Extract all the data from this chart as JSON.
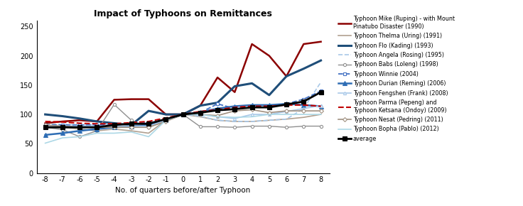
{
  "title": "Impact of Typhoons on Remittances",
  "xlabel": "No. of quarters before/after Typhoon",
  "x": [
    -8,
    -7,
    -6,
    -5,
    -4,
    -3,
    -2,
    -1,
    0,
    1,
    2,
    3,
    4,
    5,
    6,
    7,
    8
  ],
  "ylim": [
    0,
    260
  ],
  "yticks": [
    0,
    50,
    100,
    150,
    200,
    250
  ],
  "series": {
    "mike": {
      "label": "Typhoon Mike (Ruping) - with Mount\nPinatubo Disaster (1990)",
      "color": "#8B0000",
      "lw": 1.8,
      "ls": "-",
      "marker": null,
      "markersize": 0,
      "data": [
        85,
        88,
        90,
        88,
        125,
        126,
        126,
        100,
        100,
        115,
        163,
        138,
        220,
        200,
        165,
        220,
        224
      ]
    },
    "thelma": {
      "label": "Typhoon Thelma (Uring) (1991)",
      "color": "#b0a090",
      "lw": 1.2,
      "ls": "-",
      "marker": null,
      "markersize": 0,
      "data": [
        80,
        78,
        75,
        72,
        75,
        72,
        68,
        90,
        100,
        96,
        90,
        88,
        88,
        90,
        92,
        95,
        100
      ]
    },
    "flo": {
      "label": "Typhoon Flo (Kading) (1993)",
      "color": "#1f4e79",
      "lw": 2.2,
      "ls": "-",
      "marker": null,
      "markersize": 0,
      "data": [
        100,
        97,
        93,
        88,
        85,
        82,
        106,
        100,
        100,
        115,
        120,
        148,
        153,
        133,
        165,
        178,
        192
      ]
    },
    "angela": {
      "label": "Typhoon Angela (Rosing) (1995)",
      "color": "#a8c8e8",
      "lw": 1.2,
      "ls": "--",
      "marker": null,
      "markersize": 0,
      "data": [
        83,
        83,
        82,
        82,
        84,
        84,
        86,
        92,
        100,
        97,
        90,
        88,
        88,
        90,
        92,
        110,
        155
      ]
    },
    "babs": {
      "label": "Typhoon Babs (Loleng) (1998)",
      "color": "#909090",
      "lw": 1.0,
      "ls": "-",
      "marker": "o",
      "markersize": 3,
      "data": [
        78,
        74,
        62,
        72,
        117,
        90,
        78,
        91,
        100,
        79,
        79,
        78,
        80,
        80,
        78,
        80,
        80
      ]
    },
    "winnie": {
      "label": "Typhoon Winnie (2004)",
      "color": "#4472c4",
      "lw": 1.3,
      "ls": "--",
      "marker": "s",
      "markersize": 3,
      "data": [
        82,
        82,
        82,
        82,
        82,
        84,
        86,
        90,
        100,
        103,
        118,
        110,
        112,
        112,
        118,
        126,
        140
      ]
    },
    "durian": {
      "label": "Typhoon Durian (Reming) (2006)",
      "color": "#2e6db4",
      "lw": 1.8,
      "ls": "-",
      "marker": "^",
      "markersize": 4,
      "data": [
        65,
        68,
        72,
        75,
        78,
        80,
        82,
        90,
        100,
        104,
        110,
        114,
        116,
        116,
        118,
        116,
        114
      ]
    },
    "fengshen": {
      "label": "Typhoon Fengshen (Frank) (2008)",
      "color": "#a8c8e8",
      "lw": 1.2,
      "ls": "-",
      "marker": "^",
      "markersize": 3,
      "data": [
        80,
        80,
        80,
        80,
        80,
        80,
        80,
        90,
        100,
        100,
        96,
        93,
        100,
        100,
        105,
        110,
        115
      ]
    },
    "parma": {
      "label": "Typhoon Parma (Pepeng) and\nTyphoon Ketsana (Ondoy) (2009)",
      "color": "#c00000",
      "lw": 1.5,
      "ls": "--",
      "marker": null,
      "markersize": 0,
      "data": [
        88,
        87,
        85,
        84,
        84,
        86,
        88,
        94,
        100,
        105,
        108,
        112,
        114,
        114,
        116,
        116,
        114
      ]
    },
    "nesat": {
      "label": "Typhoon Nesat (Pedring) (2011)",
      "color": "#a09080",
      "lw": 1.2,
      "ls": "-",
      "marker": "D",
      "markersize": 3,
      "data": [
        82,
        80,
        78,
        78,
        78,
        78,
        78,
        88,
        100,
        100,
        98,
        106,
        108,
        103,
        106,
        106,
        106
      ]
    },
    "bopha": {
      "label": "Typhoon Bopha (Pablo) (2012)",
      "color": "#add8e6",
      "lw": 1.2,
      "ls": "-",
      "marker": null,
      "markersize": 0,
      "data": [
        51,
        60,
        62,
        68,
        68,
        70,
        62,
        90,
        100,
        100,
        96,
        95,
        96,
        100,
        100,
        100,
        100
      ]
    },
    "average": {
      "label": "average",
      "color": "#000000",
      "lw": 2.0,
      "ls": "-",
      "marker": "s",
      "markersize": 4,
      "data": [
        78,
        78,
        78,
        78,
        82,
        84,
        84,
        92,
        100,
        103,
        107,
        109,
        112,
        112,
        117,
        122,
        138
      ]
    }
  }
}
